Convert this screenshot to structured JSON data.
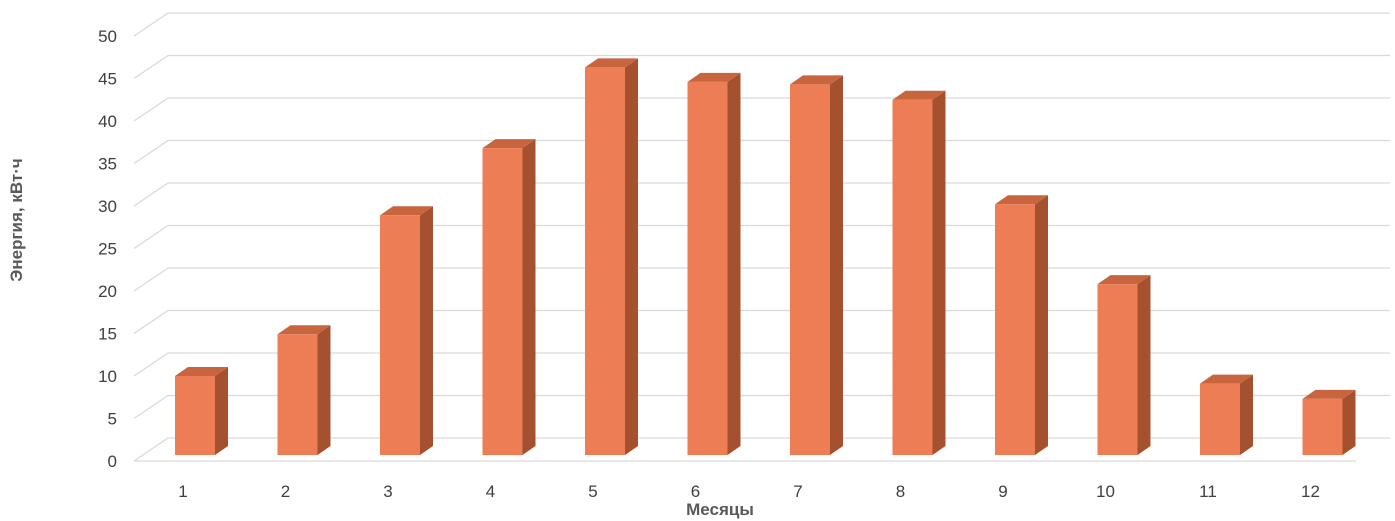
{
  "chart_data": {
    "type": "bar",
    "style": "3d-column",
    "categories": [
      "1",
      "2",
      "3",
      "4",
      "5",
      "6",
      "7",
      "8",
      "9",
      "10",
      "11",
      "12"
    ],
    "values": [
      9.3,
      14.2,
      28.2,
      36.1,
      45.6,
      43.9,
      43.6,
      41.8,
      29.5,
      20.1,
      8.4,
      6.6
    ],
    "xlabel": "Месяцы",
    "ylabel": "Энергия, кВт·ч",
    "ylim": [
      0,
      50
    ],
    "yticks": [
      "0",
      "5",
      "10",
      "15",
      "20",
      "25",
      "30",
      "35",
      "40",
      "45",
      "50"
    ],
    "grid": true,
    "legend": "none",
    "colors": {
      "bar_front": "#ED7D55",
      "bar_side": "#A5502F",
      "bar_top": "#C8653F",
      "grid": "#D9D9D9",
      "text": "#404040"
    }
  }
}
